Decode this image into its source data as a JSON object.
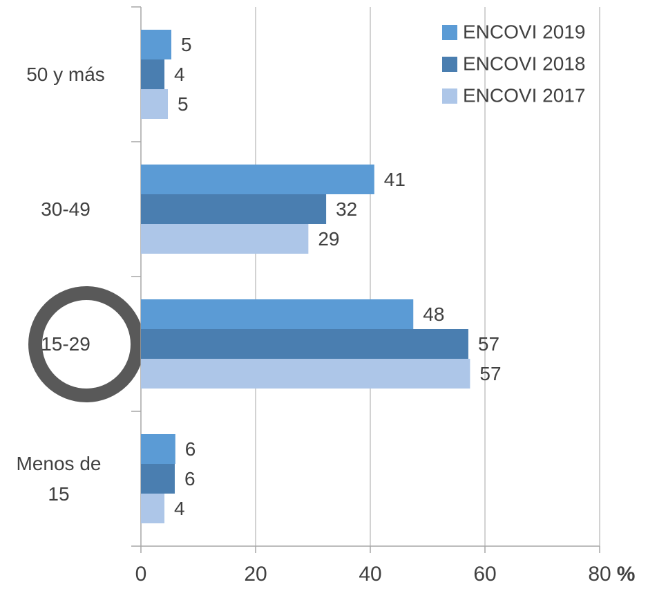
{
  "chart_data": {
    "type": "bar",
    "orientation": "horizontal",
    "categories": [
      "50 y más",
      "30-49",
      "15-29",
      "Menos de 15"
    ],
    "series": [
      {
        "name": "ENCOVI 2019",
        "color": "#5b9bd5",
        "values": [
          5.3,
          40.7,
          47.5,
          6.0
        ],
        "value_labels": [
          "5",
          "41",
          "48",
          "6"
        ]
      },
      {
        "name": "ENCOVI 2018",
        "color": "#4a7eb0",
        "values": [
          4.1,
          32.3,
          57.1,
          5.9
        ],
        "value_labels": [
          "4",
          "32",
          "57",
          "6"
        ]
      },
      {
        "name": "ENCOVI 2017",
        "color": "#adc6e8",
        "values": [
          4.7,
          29.2,
          57.4,
          4.1
        ],
        "value_labels": [
          "5",
          "29",
          "57",
          "4"
        ]
      }
    ],
    "xlim": [
      0,
      80
    ],
    "xticks": [
      0,
      20,
      40,
      60,
      80
    ],
    "x_unit": "%",
    "grid": true,
    "legend": "upper right"
  }
}
